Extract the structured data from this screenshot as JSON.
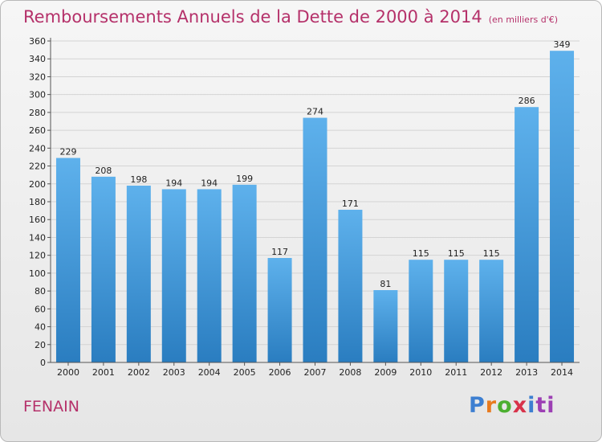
{
  "title": "Remboursements Annuels de la Dette de 2000 à 2014",
  "unit_note": "(en milliers d'€)",
  "place": "FENAIN",
  "brand": [
    "P",
    "r",
    "o",
    "x",
    "i",
    "ti"
  ],
  "colors": {
    "title": "#b5316a",
    "bar_top": "#5eb1ec",
    "bar_bottom": "#2a7dc0",
    "grid": "#d4d4d4"
  },
  "chart_data": {
    "type": "bar",
    "title": "Remboursements Annuels de la Dette de 2000 à 2014",
    "xlabel": "",
    "ylabel": "",
    "categories": [
      "2000",
      "2001",
      "2002",
      "2003",
      "2004",
      "2005",
      "2006",
      "2007",
      "2008",
      "2009",
      "2010",
      "2011",
      "2012",
      "2013",
      "2014"
    ],
    "values": [
      229,
      208,
      198,
      194,
      194,
      199,
      117,
      274,
      171,
      81,
      115,
      115,
      115,
      286,
      349
    ],
    "ylim": [
      0,
      360
    ],
    "ytick_step": 20,
    "grid": true,
    "legend": "none"
  }
}
